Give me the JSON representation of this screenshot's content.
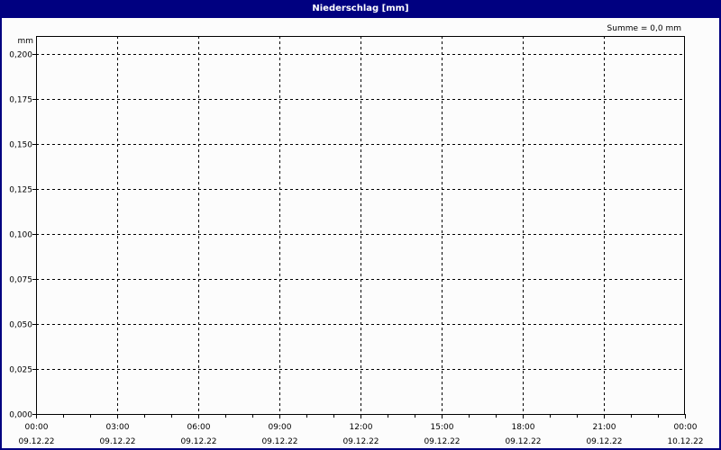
{
  "window": {
    "title": "Niederschlag [mm]"
  },
  "summary": "Summe = 0,0 mm",
  "colors": {
    "titlebar": "#000080",
    "grid": "#000000",
    "background": "#fcfcfc"
  },
  "chart_data": {
    "type": "bar",
    "title": "Niederschlag [mm]",
    "ylabel": "mm",
    "ylim": [
      0,
      0.2
    ],
    "grid": true,
    "y_ticks": [
      "0,000",
      "0,025",
      "0,050",
      "0,075",
      "0,100",
      "0,125",
      "0,150",
      "0,175",
      "0,200"
    ],
    "x_ticks": [
      {
        "time": "00:00",
        "date": "09.12.22"
      },
      {
        "time": "03:00",
        "date": "09.12.22"
      },
      {
        "time": "06:00",
        "date": "09.12.22"
      },
      {
        "time": "09:00",
        "date": "09.12.22"
      },
      {
        "time": "12:00",
        "date": "09.12.22"
      },
      {
        "time": "15:00",
        "date": "09.12.22"
      },
      {
        "time": "18:00",
        "date": "09.12.22"
      },
      {
        "time": "21:00",
        "date": "09.12.22"
      },
      {
        "time": "00:00",
        "date": "10.12.22"
      }
    ],
    "series": [
      {
        "values": []
      }
    ],
    "annotation": "Summe = 0,0 mm"
  }
}
